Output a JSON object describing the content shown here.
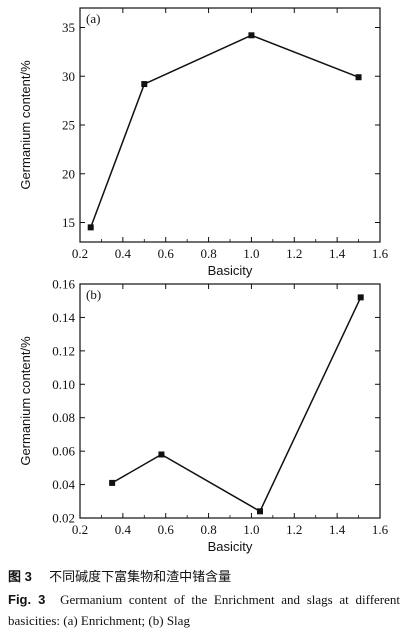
{
  "chart_data": [
    {
      "type": "line",
      "panel_label": "(a)",
      "xlabel": "Basicity",
      "ylabel": "Germanium content/%",
      "xlim": [
        0.2,
        1.6
      ],
      "ylim": [
        13,
        37
      ],
      "xticks": [
        0.2,
        0.4,
        0.6,
        0.8,
        1.0,
        1.2,
        1.4,
        1.6
      ],
      "xtick_labels": [
        "0.2",
        "0.4",
        "0.6",
        "0.8",
        "1.0",
        "1.2",
        "1.4",
        "1.6"
      ],
      "yticks": [
        15,
        20,
        25,
        30,
        35
      ],
      "ytick_labels": [
        "15",
        "20",
        "25",
        "30",
        "35"
      ],
      "grid": false,
      "marker": "square",
      "series": [
        {
          "x": [
            0.25,
            0.5,
            1.0,
            1.5
          ],
          "y": [
            14.5,
            29.2,
            34.2,
            29.9
          ]
        }
      ]
    },
    {
      "type": "line",
      "panel_label": "(b)",
      "xlabel": "Basicity",
      "ylabel": "Germanium content/%",
      "xlim": [
        0.2,
        1.6
      ],
      "ylim": [
        0.02,
        0.16
      ],
      "xticks": [
        0.2,
        0.4,
        0.6,
        0.8,
        1.0,
        1.2,
        1.4,
        1.6
      ],
      "xtick_labels": [
        "0.2",
        "0.4",
        "0.6",
        "0.8",
        "1.0",
        "1.2",
        "1.4",
        "1.6"
      ],
      "yticks": [
        0.02,
        0.04,
        0.06,
        0.08,
        0.1,
        0.12,
        0.14,
        0.16
      ],
      "ytick_labels": [
        "0.02",
        "0.04",
        "0.06",
        "0.08",
        "0.10",
        "0.12",
        "0.14",
        "0.16"
      ],
      "grid": false,
      "marker": "square",
      "series": [
        {
          "x": [
            0.35,
            0.58,
            1.04,
            1.51
          ],
          "y": [
            0.041,
            0.058,
            0.024,
            0.152
          ]
        }
      ]
    }
  ],
  "caption": {
    "cn_number": "图 3",
    "cn_text": "不同碱度下富集物和渣中锗含量",
    "en_number": "Fig. 3",
    "en_text": "Germanium content of the Enrichment and slags at different basicities: (a) Enrichment; (b) Slag"
  }
}
